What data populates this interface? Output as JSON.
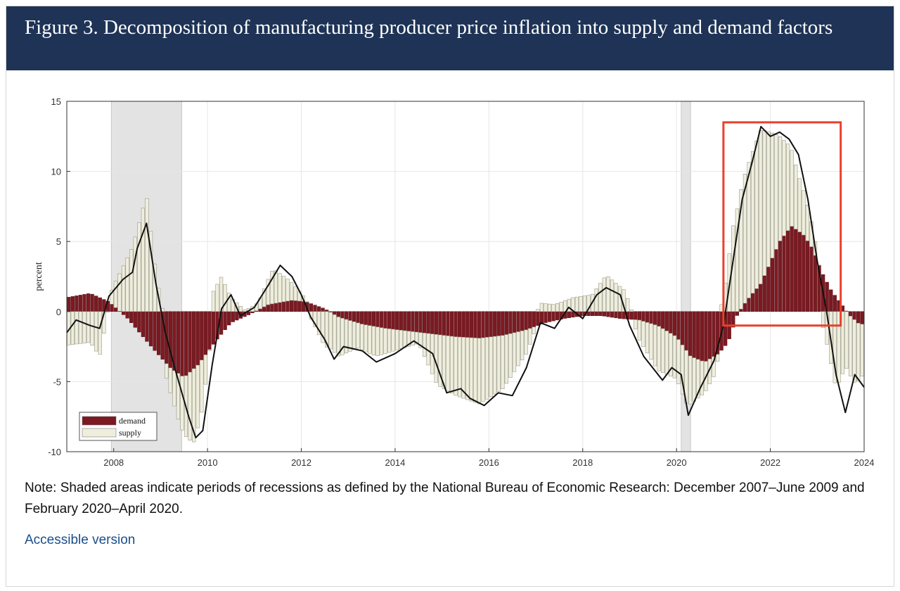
{
  "header": {
    "title": "Figure 3. Decomposition of manufacturing producer price inflation into supply and demand factors"
  },
  "note": "Note: Shaded areas indicate periods of recessions as defined by the National Bureau of Economic Research: December 2007–June 2009 and February 2020–April 2020.",
  "accessible_link": "Accessible version",
  "colors": {
    "demand": "#7b1a22",
    "supply": "#efeedd",
    "recession": "#e3e3e3",
    "line": "#111111",
    "highlight_box": "#e8412c",
    "header_bg": "#1e3356"
  },
  "chart_data": {
    "type": "bar",
    "stacked": true,
    "ylabel": "percent",
    "xlabel": "",
    "ylim": [
      -10,
      15
    ],
    "yticks": [
      -10,
      -5,
      0,
      5,
      10,
      15
    ],
    "xlim": [
      2007.0,
      2024.0
    ],
    "xticks": [
      2008,
      2010,
      2012,
      2014,
      2016,
      2018,
      2020,
      2022,
      2024
    ],
    "grid": true,
    "legend": {
      "position": "bottom-left",
      "entries": [
        "demand",
        "supply"
      ]
    },
    "recessions": [
      {
        "start": 2007.95,
        "end": 2009.45
      },
      {
        "start": 2020.1,
        "end": 2020.3
      }
    ],
    "highlight": {
      "x_start": 2021.0,
      "x_end": 2023.5,
      "y_start": -1.0,
      "y_end": 13.5
    },
    "series": [
      {
        "name": "demand",
        "points": [
          [
            2007.0,
            1.0
          ],
          [
            2007.5,
            1.3
          ],
          [
            2007.9,
            0.7
          ],
          [
            2008.3,
            -0.5
          ],
          [
            2008.8,
            -2.5
          ],
          [
            2009.2,
            -4.0
          ],
          [
            2009.5,
            -4.7
          ],
          [
            2009.8,
            -3.8
          ],
          [
            2010.2,
            -2.0
          ],
          [
            2010.5,
            -0.8
          ],
          [
            2010.9,
            -0.2
          ],
          [
            2011.3,
            0.5
          ],
          [
            2011.8,
            0.8
          ],
          [
            2012.1,
            0.7
          ],
          [
            2012.5,
            0.2
          ],
          [
            2012.8,
            -0.4
          ],
          [
            2013.3,
            -0.9
          ],
          [
            2013.8,
            -1.2
          ],
          [
            2014.3,
            -1.4
          ],
          [
            2014.8,
            -1.6
          ],
          [
            2015.3,
            -1.8
          ],
          [
            2015.8,
            -1.9
          ],
          [
            2016.3,
            -1.7
          ],
          [
            2016.8,
            -1.3
          ],
          [
            2017.2,
            -0.8
          ],
          [
            2017.6,
            -0.5
          ],
          [
            2018.0,
            -0.3
          ],
          [
            2018.4,
            -0.3
          ],
          [
            2018.8,
            -0.5
          ],
          [
            2019.2,
            -0.6
          ],
          [
            2019.6,
            -1.0
          ],
          [
            2020.0,
            -1.8
          ],
          [
            2020.3,
            -3.2
          ],
          [
            2020.6,
            -3.6
          ],
          [
            2020.9,
            -3.0
          ],
          [
            2021.1,
            -2.2
          ],
          [
            2021.3,
            -0.2
          ],
          [
            2021.5,
            0.8
          ],
          [
            2021.8,
            2.0
          ],
          [
            2022.0,
            3.5
          ],
          [
            2022.2,
            5.0
          ],
          [
            2022.45,
            6.1
          ],
          [
            2022.7,
            5.5
          ],
          [
            2022.9,
            4.5
          ],
          [
            2023.1,
            2.8
          ],
          [
            2023.3,
            1.5
          ],
          [
            2023.5,
            0.6
          ],
          [
            2023.7,
            -0.3
          ],
          [
            2023.9,
            -0.9
          ]
        ]
      },
      {
        "name": "supply",
        "points": [
          [
            2007.0,
            -2.4
          ],
          [
            2007.5,
            -2.2
          ],
          [
            2007.7,
            -3.2
          ],
          [
            2007.9,
            0.4
          ],
          [
            2008.1,
            2.5
          ],
          [
            2008.4,
            4.6
          ],
          [
            2008.7,
            8.3
          ],
          [
            2008.9,
            2.7
          ],
          [
            2009.1,
            -0.8
          ],
          [
            2009.4,
            -3.5
          ],
          [
            2009.7,
            -5.3
          ],
          [
            2009.9,
            -3.5
          ],
          [
            2010.1,
            1.3
          ],
          [
            2010.3,
            2.5
          ],
          [
            2010.5,
            1.0
          ],
          [
            2010.8,
            0.1
          ],
          [
            2011.1,
            0.6
          ],
          [
            2011.4,
            2.5
          ],
          [
            2011.7,
            1.6
          ],
          [
            2012.1,
            0.2
          ],
          [
            2012.5,
            -2.5
          ],
          [
            2012.8,
            -2.8
          ],
          [
            2013.2,
            -1.8
          ],
          [
            2013.6,
            -2.1
          ],
          [
            2014.0,
            -1.5
          ],
          [
            2014.5,
            -0.8
          ],
          [
            2014.9,
            -3.6
          ],
          [
            2015.3,
            -4.2
          ],
          [
            2015.8,
            -4.7
          ],
          [
            2016.3,
            -3.8
          ],
          [
            2016.8,
            -1.7
          ],
          [
            2017.1,
            0.6
          ],
          [
            2017.4,
            0.5
          ],
          [
            2017.8,
            1.0
          ],
          [
            2018.2,
            1.2
          ],
          [
            2018.5,
            2.6
          ],
          [
            2018.9,
            1.5
          ],
          [
            2019.2,
            -1.4
          ],
          [
            2019.6,
            -3.2
          ],
          [
            2020.0,
            -3.0
          ],
          [
            2020.2,
            -3.8
          ],
          [
            2020.5,
            -2.6
          ],
          [
            2020.8,
            -1.4
          ],
          [
            2021.0,
            1.0
          ],
          [
            2021.2,
            6.0
          ],
          [
            2021.4,
            8.9
          ],
          [
            2021.6,
            10.0
          ],
          [
            2021.8,
            11.0
          ],
          [
            2022.0,
            9.3
          ],
          [
            2022.2,
            7.5
          ],
          [
            2022.4,
            6.0
          ],
          [
            2022.6,
            4.0
          ],
          [
            2022.8,
            2.5
          ],
          [
            2023.0,
            0.6
          ],
          [
            2023.2,
            -2.2
          ],
          [
            2023.4,
            -5.5
          ],
          [
            2023.6,
            -4.0
          ],
          [
            2023.8,
            -4.5
          ],
          [
            2024.0,
            -3.5
          ]
        ]
      },
      {
        "name": "total",
        "points": [
          [
            2007.0,
            -1.5
          ],
          [
            2007.2,
            -0.6
          ],
          [
            2007.5,
            -1.0
          ],
          [
            2007.7,
            -1.2
          ],
          [
            2007.9,
            1.1
          ],
          [
            2008.2,
            2.3
          ],
          [
            2008.4,
            2.8
          ],
          [
            2008.5,
            4.5
          ],
          [
            2008.7,
            6.3
          ],
          [
            2008.9,
            2.0
          ],
          [
            2009.1,
            -1.5
          ],
          [
            2009.3,
            -4.0
          ],
          [
            2009.6,
            -7.5
          ],
          [
            2009.75,
            -9.0
          ],
          [
            2009.9,
            -8.5
          ],
          [
            2010.1,
            -3.8
          ],
          [
            2010.3,
            0.2
          ],
          [
            2010.5,
            1.2
          ],
          [
            2010.7,
            -0.3
          ],
          [
            2011.0,
            0.3
          ],
          [
            2011.3,
            1.9
          ],
          [
            2011.55,
            3.3
          ],
          [
            2011.8,
            2.5
          ],
          [
            2012.0,
            1.2
          ],
          [
            2012.2,
            -0.4
          ],
          [
            2012.5,
            -2.0
          ],
          [
            2012.7,
            -3.4
          ],
          [
            2012.9,
            -2.5
          ],
          [
            2013.3,
            -2.8
          ],
          [
            2013.6,
            -3.6
          ],
          [
            2014.0,
            -3.0
          ],
          [
            2014.4,
            -2.1
          ],
          [
            2014.8,
            -3.0
          ],
          [
            2015.1,
            -5.8
          ],
          [
            2015.4,
            -5.5
          ],
          [
            2015.6,
            -6.2
          ],
          [
            2015.9,
            -6.7
          ],
          [
            2016.2,
            -5.8
          ],
          [
            2016.5,
            -6.0
          ],
          [
            2016.8,
            -4.0
          ],
          [
            2017.1,
            -0.8
          ],
          [
            2017.4,
            -1.2
          ],
          [
            2017.7,
            0.3
          ],
          [
            2018.0,
            -0.5
          ],
          [
            2018.3,
            1.2
          ],
          [
            2018.5,
            1.7
          ],
          [
            2018.8,
            1.2
          ],
          [
            2019.0,
            -1.0
          ],
          [
            2019.3,
            -3.2
          ],
          [
            2019.7,
            -4.9
          ],
          [
            2019.9,
            -4.0
          ],
          [
            2020.1,
            -4.5
          ],
          [
            2020.25,
            -7.4
          ],
          [
            2020.5,
            -5.5
          ],
          [
            2020.8,
            -3.5
          ],
          [
            2021.0,
            -1.0
          ],
          [
            2021.2,
            3.5
          ],
          [
            2021.4,
            8.0
          ],
          [
            2021.6,
            10.5
          ],
          [
            2021.8,
            13.2
          ],
          [
            2022.0,
            12.5
          ],
          [
            2022.2,
            12.8
          ],
          [
            2022.4,
            12.3
          ],
          [
            2022.6,
            11.2
          ],
          [
            2022.8,
            8.0
          ],
          [
            2023.0,
            3.6
          ],
          [
            2023.2,
            0.0
          ],
          [
            2023.4,
            -4.5
          ],
          [
            2023.6,
            -7.2
          ],
          [
            2023.8,
            -4.5
          ],
          [
            2024.0,
            -5.4
          ]
        ]
      }
    ]
  }
}
